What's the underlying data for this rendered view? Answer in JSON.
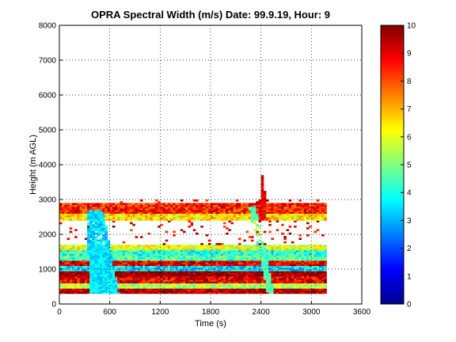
{
  "chart_data": {
    "type": "heatmap",
    "title": "OPRA Spectral Width (m/s)  Date: 99.9.19, Hour: 9",
    "xlabel": "Time (s)",
    "ylabel": "Height (m AGL)",
    "xlim": [
      0,
      3600
    ],
    "ylim": [
      0,
      8000
    ],
    "xticks": [
      0,
      600,
      1200,
      1800,
      2400,
      3000,
      3600
    ],
    "yticks": [
      0,
      1000,
      2000,
      3000,
      4000,
      5000,
      6000,
      7000,
      8000
    ],
    "grid": true,
    "colorbar": {
      "label": "Spectral Width (m/s)",
      "range": [
        0,
        10
      ],
      "ticks": [
        0,
        1,
        2,
        3,
        4,
        5,
        6,
        7,
        8,
        9,
        10
      ],
      "colormap": "jet"
    },
    "data_extent": {
      "time_end_s": 3180,
      "height_top_m": 3000
    },
    "layers": [
      {
        "height_range_m": [
          300,
          450
        ],
        "spectral_width_ms": 9.5
      },
      {
        "height_range_m": [
          450,
          600
        ],
        "spectral_width_ms": 5.5
      },
      {
        "height_range_m": [
          600,
          800
        ],
        "spectral_width_ms": 9.0
      },
      {
        "height_range_m": [
          800,
          950
        ],
        "spectral_width_ms": 10.0
      },
      {
        "height_range_m": [
          950,
          1100
        ],
        "spectral_width_ms": 3.5
      },
      {
        "height_range_m": [
          1100,
          1250
        ],
        "spectral_width_ms": 9.0
      },
      {
        "height_range_m": [
          1250,
          1400
        ],
        "spectral_width_ms": 4.5
      },
      {
        "height_range_m": [
          1400,
          1550
        ],
        "spectral_width_ms": 4.0
      },
      {
        "height_range_m": [
          1550,
          1700
        ],
        "spectral_width_ms": 6.0
      },
      {
        "height_range_m": [
          2400,
          2600
        ],
        "spectral_width_ms": 6.5
      },
      {
        "height_range_m": [
          2600,
          2900
        ],
        "spectral_width_ms": 8.5
      }
    ],
    "features": [
      {
        "name": "low-width plume",
        "time_range_s": [
          380,
          700
        ],
        "height_range_m": [
          300,
          2700
        ],
        "spectral_width_ms": 3.5
      },
      {
        "name": "high-width spike",
        "time_s": 2420,
        "height_range_m": [
          2400,
          3700
        ],
        "spectral_width_ms": 9.5
      }
    ]
  }
}
